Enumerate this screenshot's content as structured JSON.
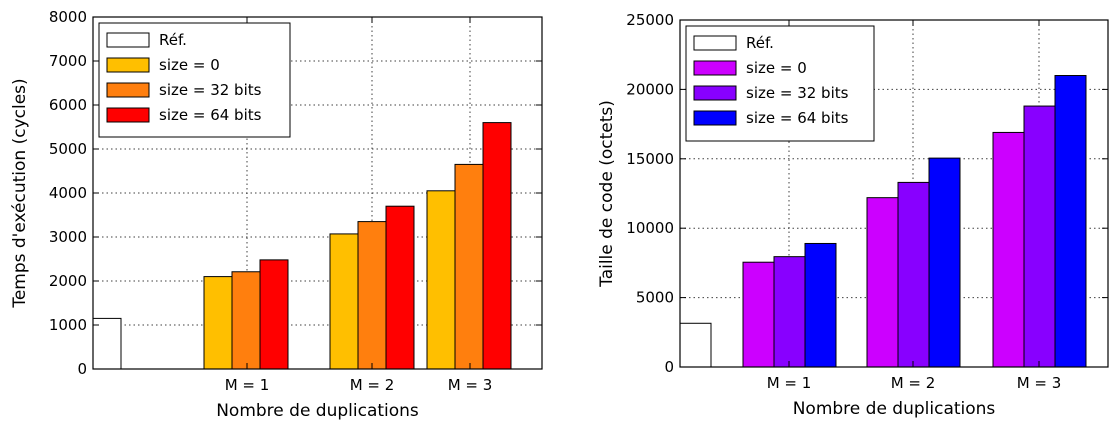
{
  "chart_data": [
    {
      "type": "bar",
      "categories": [
        "M = 1",
        "M = 2",
        "M = 3"
      ],
      "reference": {
        "name": "Réf.",
        "value": 1150,
        "color": "#ffffff"
      },
      "series": [
        {
          "name": "size = 0",
          "values": [
            2100,
            3070,
            4050
          ],
          "color": "#ffbf00"
        },
        {
          "name": "size = 32 bits",
          "values": [
            2210,
            3350,
            4650
          ],
          "color": "#ff7f0e"
        },
        {
          "name": "size = 64 bits",
          "values": [
            2480,
            3700,
            5600
          ],
          "color": "#ff0000"
        }
      ],
      "xlabel": "Nombre de duplications",
      "ylabel": "Temps d'exécution (cycles)",
      "ylim": [
        0,
        8000
      ],
      "yticks": [
        0,
        1000,
        2000,
        3000,
        4000,
        5000,
        6000,
        7000,
        8000
      ],
      "grid": true,
      "legend_position": "top-left"
    },
    {
      "type": "bar",
      "categories": [
        "M = 1",
        "M = 2",
        "M = 3"
      ],
      "reference": {
        "name": "Réf.",
        "value": 3150,
        "color": "#ffffff"
      },
      "series": [
        {
          "name": "size = 0",
          "values": [
            7550,
            12200,
            16900
          ],
          "color": "#cc00ff"
        },
        {
          "name": "size = 32 bits",
          "values": [
            7950,
            13300,
            18800
          ],
          "color": "#8800ff"
        },
        {
          "name": "size = 64 bits",
          "values": [
            8900,
            15050,
            21000
          ],
          "color": "#0000ff"
        }
      ],
      "xlabel": "Nombre de duplications",
      "ylabel": "Taille de code (octets)",
      "ylim": [
        0,
        25000
      ],
      "yticks": [
        0,
        5000,
        10000,
        15000,
        20000,
        25000
      ],
      "grid": true,
      "legend_position": "top-left"
    }
  ]
}
